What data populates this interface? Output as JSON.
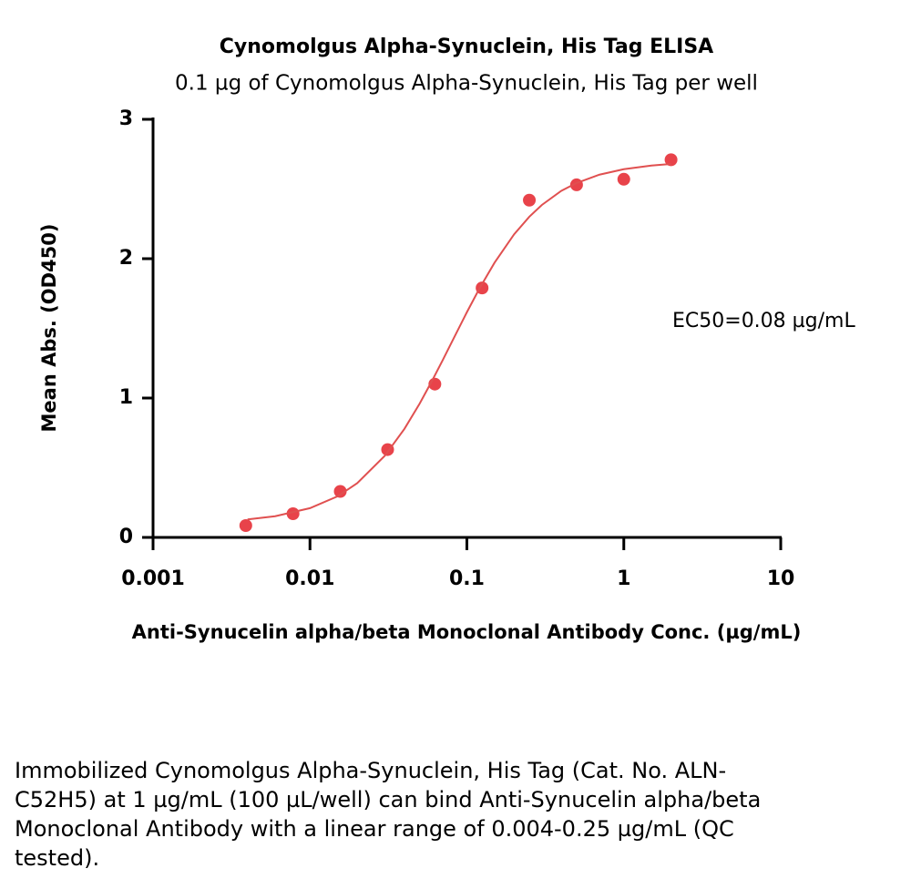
{
  "chart_data": {
    "type": "scatter",
    "title": "Cynomolgus Alpha-Synuclein, His Tag ELISA",
    "subtitle": "0.1 µg of Cynomolgus Alpha-Synuclein, His Tag per well",
    "x_label": "Anti-Synucelin alpha/beta Monoclonal Antibody Conc. (µg/mL)",
    "y_label": "Mean Abs. (OD450)",
    "annotation": "EC50=0.08 µg/mL",
    "x_scale": "log",
    "xlim": [
      0.001,
      10
    ],
    "xticks": [
      0.001,
      0.01,
      0.1,
      1,
      10
    ],
    "ylim": [
      0,
      3
    ],
    "yticks": [
      0,
      1,
      2,
      3
    ],
    "series": [
      {
        "color": "#e8434a",
        "marker": "circle",
        "x": [
          0.0039,
          0.0078,
          0.0156,
          0.03125,
          0.0625,
          0.125,
          0.25,
          0.5,
          1,
          2
        ],
        "values": [
          0.085,
          0.17,
          0.33,
          0.63,
          1.1,
          1.79,
          2.42,
          2.53,
          2.57,
          2.71
        ]
      },
      {
        "color": "#e05050",
        "line": true,
        "x": [
          0.004,
          0.006,
          0.01,
          0.015,
          0.02,
          0.03,
          0.04,
          0.05,
          0.06,
          0.07,
          0.08,
          0.1,
          0.12,
          0.15,
          0.2,
          0.25,
          0.3,
          0.4,
          0.5,
          0.7,
          1,
          1.5,
          2
        ],
        "values": [
          0.129,
          0.152,
          0.21,
          0.295,
          0.389,
          0.586,
          0.779,
          0.96,
          1.124,
          1.27,
          1.4,
          1.616,
          1.784,
          1.971,
          2.175,
          2.301,
          2.385,
          2.487,
          2.543,
          2.603,
          2.642,
          2.668,
          2.68
        ]
      }
    ]
  },
  "caption": "Immobilized Cynomolgus Alpha-Synuclein, His Tag (Cat. No. ALN-C52H5) at 1 µg/mL (100 µL/well) can bind Anti-Synucelin alpha/beta Monoclonal Antibody with a linear range of 0.004-0.25 µg/mL (QC tested)."
}
